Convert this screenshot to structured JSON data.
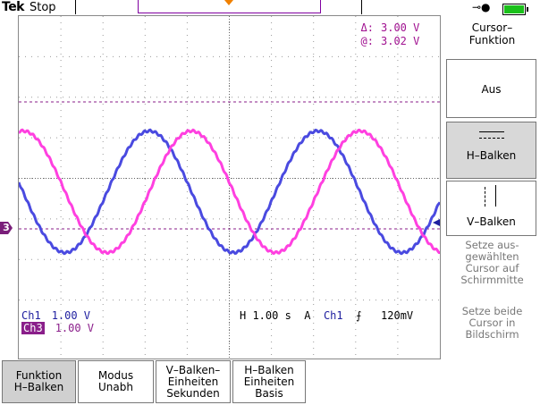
{
  "status": {
    "brand": "Tek",
    "run_state": "Stop",
    "power_icon": "ac-plug-icon",
    "battery_color": "#1ac01a"
  },
  "cursor_readout": {
    "delta_label": "Δ:",
    "delta_value": "3.00 V",
    "at_label": "@:",
    "at_value": "3.02 V"
  },
  "channels": {
    "ch1": {
      "label": "Ch1",
      "scale": "1.00 V",
      "color": "#4a4ae0"
    },
    "ch3": {
      "label": "Ch3",
      "scale": "1.00 V",
      "color": "#ff40e0",
      "marker": "3"
    }
  },
  "timebase": {
    "h": "H 1.00 s",
    "mode": "A",
    "source": "Ch1",
    "slope_icon": "rising-edge-icon",
    "level": "120mV"
  },
  "side_menu": {
    "title": "Cursor–\nFunktion",
    "items": [
      {
        "label": "Aus"
      },
      {
        "label": "H–Balken"
      },
      {
        "label": "V–Balken"
      }
    ],
    "hint1": "Setze aus-\ngewählten\nCursor auf\nSchirmmitte",
    "hint2": "Setze beide\nCursor in\nBildschirm"
  },
  "bottom_menu": [
    {
      "label": "Funktion\nH–Balken"
    },
    {
      "label": "Modus\nUnabh"
    },
    {
      "label": "V–Balken–\nEinheiten\nSekunden"
    },
    {
      "label": "H–Balken\nEinheiten\nBasis"
    }
  ],
  "chart_data": {
    "type": "line",
    "series": [
      {
        "name": "Ch1",
        "color": "#4a4ae0",
        "shape": "sine",
        "amplitude_div": 1.5,
        "cycles_on_screen": 2.5
      },
      {
        "name": "Ch3",
        "color": "#ff40e0",
        "shape": "sine",
        "amplitude_div": 1.5,
        "cycles_on_screen": 2.5
      }
    ],
    "grid": true,
    "grid_divisions": [
      10,
      8
    ]
  }
}
